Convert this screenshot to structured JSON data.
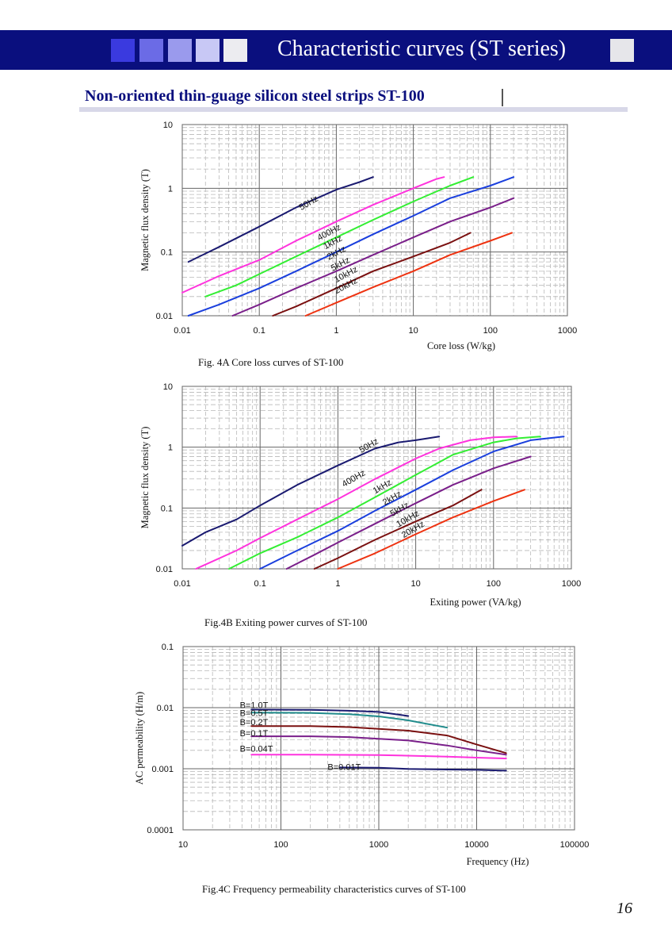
{
  "header": {
    "title": "Characteristic curves (ST series)",
    "squares": [
      "#3a3adf",
      "#6b6be6",
      "#9a9aed",
      "#c8c8f5",
      "#ececf0"
    ],
    "end_square": "#e6e6ea",
    "bar_color": "#0a0f7e"
  },
  "section": {
    "title": "Non-oriented thin-guage silicon steel strips ST-100"
  },
  "page_number": "16",
  "colors": {
    "navy": "#1a1a70",
    "magenta": "#ff33dd",
    "green": "#33ee33",
    "blue": "#1a3fdd",
    "purple": "#7a1f8a",
    "maroon": "#7a1010",
    "red": "#ee3311",
    "teal": "#208c8c"
  },
  "chart_data": [
    {
      "type": "line",
      "caption": "Fig. 4A Core loss curves of ST-100",
      "xlabel": "Core loss (W/kg)",
      "ylabel": "Magnetic flux density (T)",
      "x_scale": "log",
      "y_scale": "log",
      "xlim": [
        0.01,
        1000
      ],
      "ylim": [
        0.01,
        10
      ],
      "x_ticks": [
        "0.01",
        "0.1",
        "1",
        "10",
        "100",
        "1000"
      ],
      "y_ticks": [
        "10",
        "1",
        "0.1",
        "0.01"
      ],
      "grid": true,
      "series": [
        {
          "name": "50Hz",
          "color": "navy",
          "points": [
            [
              0.012,
              0.07
            ],
            [
              0.03,
              0.12
            ],
            [
              0.1,
              0.25
            ],
            [
              0.3,
              0.5
            ],
            [
              1,
              0.95
            ],
            [
              2,
              1.25
            ],
            [
              3,
              1.5
            ]
          ]
        },
        {
          "name": "400Hz",
          "color": "magenta",
          "points": [
            [
              0.01,
              0.023
            ],
            [
              0.03,
              0.042
            ],
            [
              0.1,
              0.075
            ],
            [
              0.3,
              0.15
            ],
            [
              1,
              0.3
            ],
            [
              3,
              0.55
            ],
            [
              10,
              1.0
            ],
            [
              20,
              1.4
            ],
            [
              25,
              1.5
            ]
          ]
        },
        {
          "name": "1kHz",
          "color": "green",
          "points": [
            [
              0.02,
              0.02
            ],
            [
              0.05,
              0.03
            ],
            [
              0.1,
              0.045
            ],
            [
              0.3,
              0.085
            ],
            [
              1,
              0.17
            ],
            [
              3,
              0.32
            ],
            [
              10,
              0.62
            ],
            [
              30,
              1.1
            ],
            [
              60,
              1.5
            ]
          ]
        },
        {
          "name": "2kHz",
          "color": "blue",
          "points": [
            [
              0.012,
              0.01
            ],
            [
              0.03,
              0.015
            ],
            [
              0.1,
              0.027
            ],
            [
              0.3,
              0.05
            ],
            [
              1,
              0.1
            ],
            [
              3,
              0.19
            ],
            [
              10,
              0.37
            ],
            [
              30,
              0.7
            ],
            [
              100,
              1.1
            ],
            [
              200,
              1.5
            ]
          ]
        },
        {
          "name": "5kHz",
          "color": "purple",
          "points": [
            [
              0.045,
              0.01
            ],
            [
              0.1,
              0.015
            ],
            [
              0.3,
              0.027
            ],
            [
              1,
              0.05
            ],
            [
              3,
              0.09
            ],
            [
              10,
              0.17
            ],
            [
              30,
              0.3
            ],
            [
              100,
              0.5
            ],
            [
              200,
              0.7
            ]
          ]
        },
        {
          "name": "10kHz",
          "color": "maroon",
          "points": [
            [
              0.15,
              0.01
            ],
            [
              0.3,
              0.014
            ],
            [
              1,
              0.027
            ],
            [
              3,
              0.05
            ],
            [
              10,
              0.085
            ],
            [
              30,
              0.14
            ],
            [
              55,
              0.2
            ]
          ]
        },
        {
          "name": "20kHz",
          "color": "red",
          "points": [
            [
              0.4,
              0.01
            ],
            [
              1,
              0.016
            ],
            [
              3,
              0.028
            ],
            [
              10,
              0.05
            ],
            [
              30,
              0.09
            ],
            [
              100,
              0.15
            ],
            [
              190,
              0.2
            ]
          ]
        }
      ],
      "labels": [
        {
          "text": "50Hz",
          "x": 0.35,
          "y": 0.45,
          "angle": -30
        },
        {
          "text": "400Hz",
          "x": 0.6,
          "y": 0.15,
          "angle": -28
        },
        {
          "text": "1kHz",
          "x": 0.72,
          "y": 0.11,
          "angle": -28
        },
        {
          "text": "2kHz",
          "x": 0.8,
          "y": 0.075,
          "angle": -28
        },
        {
          "text": "5kHz",
          "x": 0.9,
          "y": 0.05,
          "angle": -28
        },
        {
          "text": "10kHz",
          "x": 1.0,
          "y": 0.033,
          "angle": -28
        },
        {
          "text": "20kHz",
          "x": 1.0,
          "y": 0.022,
          "angle": -28
        }
      ]
    },
    {
      "type": "line",
      "caption": "Fig.4B Exiting power curves of ST-100",
      "xlabel": "Exiting power (VA/kg)",
      "ylabel": "Magnetic flux density (T)",
      "x_scale": "log",
      "y_scale": "log",
      "xlim": [
        0.01,
        1000
      ],
      "ylim": [
        0.01,
        10
      ],
      "x_ticks": [
        "0.01",
        "0.1",
        "1",
        "10",
        "100",
        "1000"
      ],
      "y_ticks": [
        "10",
        "1",
        "0.1",
        "0.01"
      ],
      "grid": true,
      "series": [
        {
          "name": "50Hz",
          "color": "navy",
          "points": [
            [
              0.01,
              0.024
            ],
            [
              0.02,
              0.04
            ],
            [
              0.05,
              0.065
            ],
            [
              0.1,
              0.11
            ],
            [
              0.3,
              0.24
            ],
            [
              1,
              0.5
            ],
            [
              3,
              0.95
            ],
            [
              6,
              1.2
            ],
            [
              10,
              1.3
            ],
            [
              20,
              1.5
            ]
          ]
        },
        {
          "name": "400Hz",
          "color": "magenta",
          "points": [
            [
              0.015,
              0.01
            ],
            [
              0.05,
              0.02
            ],
            [
              0.1,
              0.032
            ],
            [
              0.3,
              0.065
            ],
            [
              1,
              0.14
            ],
            [
              3,
              0.3
            ],
            [
              10,
              0.65
            ],
            [
              20,
              0.95
            ],
            [
              50,
              1.3
            ],
            [
              100,
              1.45
            ],
            [
              200,
              1.5
            ]
          ]
        },
        {
          "name": "1kHz",
          "color": "green",
          "points": [
            [
              0.04,
              0.01
            ],
            [
              0.1,
              0.018
            ],
            [
              0.3,
              0.033
            ],
            [
              1,
              0.07
            ],
            [
              3,
              0.15
            ],
            [
              10,
              0.35
            ],
            [
              30,
              0.75
            ],
            [
              100,
              1.2
            ],
            [
              200,
              1.4
            ],
            [
              400,
              1.5
            ]
          ]
        },
        {
          "name": "2kHz",
          "color": "blue",
          "points": [
            [
              0.1,
              0.01
            ],
            [
              0.3,
              0.02
            ],
            [
              1,
              0.042
            ],
            [
              3,
              0.09
            ],
            [
              10,
              0.2
            ],
            [
              30,
              0.42
            ],
            [
              100,
              0.85
            ],
            [
              300,
              1.3
            ],
            [
              800,
              1.5
            ]
          ]
        },
        {
          "name": "5kHz",
          "color": "purple",
          "points": [
            [
              0.22,
              0.01
            ],
            [
              0.5,
              0.017
            ],
            [
              1,
              0.027
            ],
            [
              3,
              0.055
            ],
            [
              10,
              0.12
            ],
            [
              30,
              0.24
            ],
            [
              100,
              0.45
            ],
            [
              300,
              0.7
            ]
          ]
        },
        {
          "name": "10kHz",
          "color": "maroon",
          "points": [
            [
              0.5,
              0.01
            ],
            [
              1,
              0.015
            ],
            [
              3,
              0.03
            ],
            [
              10,
              0.06
            ],
            [
              30,
              0.11
            ],
            [
              70,
              0.2
            ]
          ]
        },
        {
          "name": "20kHz",
          "color": "red",
          "points": [
            [
              1,
              0.01
            ],
            [
              3,
              0.018
            ],
            [
              10,
              0.037
            ],
            [
              30,
              0.07
            ],
            [
              100,
              0.13
            ],
            [
              250,
              0.2
            ]
          ]
        }
      ],
      "labels": [
        {
          "text": "50Hz",
          "x": 2.0,
          "y": 0.8,
          "angle": -30
        },
        {
          "text": "400Hz",
          "x": 1.2,
          "y": 0.22,
          "angle": -30
        },
        {
          "text": "1kHz",
          "x": 3.0,
          "y": 0.17,
          "angle": -30
        },
        {
          "text": "2kHz",
          "x": 4.0,
          "y": 0.11,
          "angle": -30
        },
        {
          "text": "5kHz",
          "x": 5.0,
          "y": 0.072,
          "angle": -30
        },
        {
          "text": "10kHz",
          "x": 6.0,
          "y": 0.048,
          "angle": -30
        },
        {
          "text": "20kHz",
          "x": 7.0,
          "y": 0.032,
          "angle": -30
        }
      ]
    },
    {
      "type": "line",
      "caption": "Fig.4C Frequency permeability characteristics curves of ST-100",
      "xlabel": "Frequency (Hz)",
      "ylabel": "AC permeability (H/m)",
      "x_scale": "log",
      "y_scale": "log",
      "xlim": [
        10,
        100000
      ],
      "ylim": [
        0.0001,
        0.1
      ],
      "x_ticks": [
        "10",
        "100",
        "1000",
        "10000",
        "100000"
      ],
      "y_ticks": [
        "0.1",
        "0.01",
        "0.001",
        "0.0001"
      ],
      "grid": true,
      "series": [
        {
          "name": "B=1.0T",
          "color": "navy",
          "points": [
            [
              50,
              0.0093
            ],
            [
              200,
              0.0092
            ],
            [
              500,
              0.0089
            ],
            [
              1000,
              0.0085
            ],
            [
              2000,
              0.0073
            ]
          ]
        },
        {
          "name": "B=0.5T",
          "color": "teal",
          "points": [
            [
              50,
              0.0083
            ],
            [
              200,
              0.0082
            ],
            [
              500,
              0.0078
            ],
            [
              1000,
              0.0072
            ],
            [
              2000,
              0.0062
            ],
            [
              5000,
              0.0047
            ]
          ]
        },
        {
          "name": "B=0.2T",
          "color": "maroon",
          "points": [
            [
              50,
              0.005
            ],
            [
              200,
              0.005
            ],
            [
              500,
              0.0048
            ],
            [
              1000,
              0.0045
            ],
            [
              2000,
              0.0042
            ],
            [
              5000,
              0.0035
            ],
            [
              10000,
              0.0025
            ],
            [
              20000,
              0.0018
            ]
          ]
        },
        {
          "name": "B=0.1T",
          "color": "purple",
          "points": [
            [
              50,
              0.0034
            ],
            [
              200,
              0.0034
            ],
            [
              500,
              0.0033
            ],
            [
              1000,
              0.0031
            ],
            [
              2000,
              0.0029
            ],
            [
              5000,
              0.0024
            ],
            [
              10000,
              0.002
            ],
            [
              20000,
              0.0017
            ]
          ]
        },
        {
          "name": "B=0.04T",
          "color": "magenta",
          "points": [
            [
              50,
              0.0017
            ],
            [
              200,
              0.0017
            ],
            [
              1000,
              0.00168
            ],
            [
              5000,
              0.00158
            ],
            [
              10000,
              0.00152
            ],
            [
              20000,
              0.00147
            ]
          ]
        },
        {
          "name": "B=0.01T",
          "color": "navy",
          "points": [
            [
              400,
              0.00105
            ],
            [
              1000,
              0.00104
            ],
            [
              2000,
              0.00099
            ],
            [
              5000,
              0.00097
            ],
            [
              10000,
              0.00096
            ],
            [
              20000,
              0.00093
            ]
          ]
        }
      ],
      "labels": [
        {
          "text": "B=1.0T",
          "x": 38,
          "y": 0.0098,
          "angle": 0
        },
        {
          "text": "B=0.5T",
          "x": 38,
          "y": 0.0073,
          "angle": 0
        },
        {
          "text": "B=0.2T",
          "x": 38,
          "y": 0.0052,
          "angle": 0
        },
        {
          "text": "B=0.1T",
          "x": 38,
          "y": 0.0034,
          "angle": 0
        },
        {
          "text": "B=0.04T",
          "x": 38,
          "y": 0.0019,
          "angle": 0
        },
        {
          "text": "B=0.01T",
          "x": 300,
          "y": 0.00096,
          "angle": 0
        }
      ]
    }
  ]
}
